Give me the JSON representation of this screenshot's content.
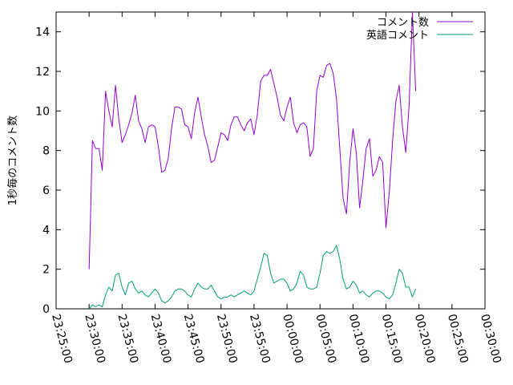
{
  "chart_data": {
    "type": "line",
    "title": "",
    "xlabel": "",
    "ylabel": "1秒毎のコメント数",
    "xlim": [
      "23:25:00",
      "00:30:00"
    ],
    "ylim": [
      0,
      15
    ],
    "grid": false,
    "legend_position": "top-right",
    "x_ticks": [
      "23:25:00",
      "23:30:00",
      "23:35:00",
      "23:40:00",
      "23:45:00",
      "23:50:00",
      "23:55:00",
      "00:00:00",
      "00:05:00",
      "00:10:00",
      "00:15:00",
      "00:20:00",
      "00:25:00",
      "00:30:00"
    ],
    "y_ticks": [
      "0",
      "2",
      "4",
      "6",
      "8",
      "10",
      "12",
      "14"
    ],
    "x_start": "23:30:00",
    "x_step": "00:00:30",
    "series": [
      {
        "name": "コメント数",
        "color": "#9400d3",
        "values": [
          2.0,
          8.5,
          8.1,
          8.1,
          7.0,
          11.0,
          10.0,
          9.2,
          11.3,
          9.6,
          8.4,
          8.8,
          9.3,
          9.9,
          10.8,
          9.5,
          9.1,
          8.4,
          9.2,
          9.3,
          9.2,
          8.2,
          6.9,
          7.0,
          7.6,
          9.1,
          10.2,
          10.2,
          10.1,
          9.3,
          9.2,
          8.6,
          9.9,
          10.7,
          9.7,
          8.8,
          8.2,
          7.4,
          7.5,
          8.2,
          8.9,
          8.8,
          8.5,
          9.3,
          9.7,
          9.7,
          9.3,
          9.0,
          9.4,
          9.6,
          8.8,
          9.8,
          11.5,
          11.8,
          11.8,
          12.1,
          11.4,
          10.7,
          9.8,
          9.5,
          10.2,
          10.7,
          9.4,
          8.9,
          9.3,
          9.4,
          9.2,
          7.7,
          8.1,
          11.0,
          11.8,
          11.7,
          12.3,
          12.4,
          11.9,
          10.6,
          8.1,
          5.6,
          4.8,
          7.4,
          9.1,
          7.9,
          5.1,
          6.5,
          8.1,
          8.6,
          6.7,
          7.0,
          7.7,
          7.4,
          4.1,
          5.9,
          8.5,
          10.5,
          11.3,
          9.2,
          7.9,
          10.2,
          15.0,
          11.0
        ]
      },
      {
        "name": "英語コメント",
        "color": "#009e73",
        "values": [
          0.0,
          0.2,
          0.1,
          0.2,
          0.1,
          0.7,
          1.1,
          0.9,
          1.7,
          1.8,
          1.1,
          0.7,
          1.3,
          1.4,
          1.0,
          0.8,
          0.9,
          0.7,
          0.6,
          0.8,
          1.0,
          0.8,
          0.4,
          0.3,
          0.4,
          0.6,
          0.9,
          1.0,
          1.0,
          0.9,
          0.7,
          0.6,
          1.0,
          1.3,
          1.1,
          1.0,
          1.0,
          1.2,
          0.9,
          0.6,
          0.5,
          0.6,
          0.6,
          0.7,
          0.6,
          0.7,
          0.8,
          0.9,
          0.8,
          0.7,
          0.9,
          1.5,
          2.1,
          2.8,
          2.7,
          1.8,
          1.3,
          1.4,
          1.5,
          1.5,
          1.3,
          0.9,
          1.0,
          1.3,
          1.9,
          1.7,
          1.1,
          1.0,
          1.0,
          1.1,
          1.8,
          2.7,
          2.9,
          2.8,
          2.9,
          3.2,
          2.5,
          1.5,
          1.0,
          1.1,
          1.4,
          1.2,
          0.8,
          0.9,
          0.7,
          0.6,
          0.8,
          0.9,
          0.9,
          0.8,
          0.6,
          0.5,
          0.7,
          1.3,
          2.0,
          1.8,
          1.1,
          1.1,
          0.6,
          1.0
        ]
      }
    ]
  }
}
